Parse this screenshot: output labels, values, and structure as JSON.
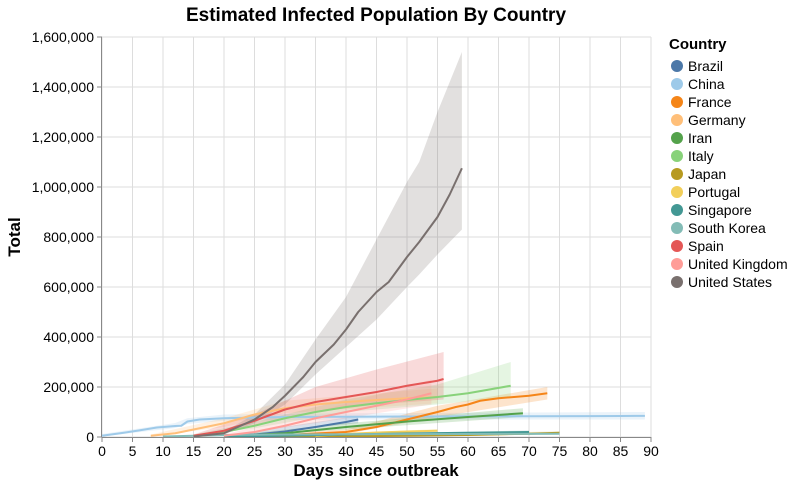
{
  "chart_data": {
    "type": "line",
    "title": "Estimated Infected Population By Country",
    "xlabel": "Days since outbreak",
    "ylabel": "Total",
    "xlim": [
      0,
      90
    ],
    "ylim": [
      0,
      1600000
    ],
    "x_ticks": [
      0,
      5,
      10,
      15,
      20,
      25,
      30,
      35,
      40,
      45,
      50,
      55,
      60,
      65,
      70,
      75,
      80,
      85,
      90
    ],
    "x_tick_labels": [
      "0",
      "5",
      "10",
      "15",
      "20",
      "25",
      "30",
      "35",
      "40",
      "45",
      "50",
      "55",
      "60",
      "65",
      "70",
      "75",
      "80",
      "85",
      "90"
    ],
    "y_ticks": [
      0,
      200000,
      400000,
      600000,
      800000,
      1000000,
      1200000,
      1400000,
      1600000
    ],
    "y_tick_labels": [
      "0",
      "200,000",
      "400,000",
      "600,000",
      "800,000",
      "1,000,000",
      "1,200,000",
      "1,400,000",
      "1,600,000"
    ],
    "grid": true,
    "legend": {
      "title": "Country",
      "position": "right"
    },
    "series": [
      {
        "name": "Brazil",
        "color": "#4c78a8",
        "points": [
          [
            20,
            3000
          ],
          [
            25,
            10000
          ],
          [
            30,
            22000
          ],
          [
            35,
            40000
          ],
          [
            40,
            60000
          ],
          [
            42,
            70000
          ]
        ],
        "band": [
          [
            20,
            2000,
            5000
          ],
          [
            42,
            55000,
            85000
          ]
        ]
      },
      {
        "name": "China",
        "color": "#9ecae9",
        "points": [
          [
            0,
            5000
          ],
          [
            3,
            15000
          ],
          [
            6,
            26000
          ],
          [
            9,
            38000
          ],
          [
            12,
            44000
          ],
          [
            13,
            45000
          ],
          [
            14,
            62000
          ],
          [
            16,
            70000
          ],
          [
            20,
            75000
          ],
          [
            25,
            78000
          ],
          [
            30,
            80000
          ],
          [
            40,
            81000
          ],
          [
            50,
            82000
          ],
          [
            60,
            82500
          ],
          [
            70,
            83000
          ],
          [
            80,
            83500
          ],
          [
            85,
            84000
          ],
          [
            89,
            84500
          ]
        ],
        "band": [
          [
            0,
            2000,
            12000
          ],
          [
            12,
            36000,
            56000
          ],
          [
            14,
            52000,
            75000
          ],
          [
            20,
            65000,
            90000
          ],
          [
            40,
            70000,
            95000
          ],
          [
            89,
            70000,
            100000
          ]
        ]
      },
      {
        "name": "France",
        "color": "#f58518",
        "points": [
          [
            20,
            2000
          ],
          [
            30,
            8000
          ],
          [
            40,
            20000
          ],
          [
            45,
            40000
          ],
          [
            50,
            70000
          ],
          [
            55,
            100000
          ],
          [
            58,
            120000
          ],
          [
            60,
            130000
          ],
          [
            62,
            145000
          ],
          [
            65,
            155000
          ],
          [
            70,
            165000
          ],
          [
            73,
            175000
          ]
        ],
        "band": [
          [
            20,
            1000,
            4000
          ],
          [
            40,
            12000,
            30000
          ],
          [
            55,
            80000,
            125000
          ],
          [
            73,
            150000,
            200000
          ]
        ]
      },
      {
        "name": "Germany",
        "color": "#ffbf79",
        "points": [
          [
            8,
            5000
          ],
          [
            12,
            15000
          ],
          [
            15,
            30000
          ],
          [
            20,
            55000
          ],
          [
            25,
            90000
          ],
          [
            30,
            115000
          ],
          [
            35,
            130000
          ],
          [
            40,
            140000
          ],
          [
            45,
            148000
          ],
          [
            50,
            155000
          ],
          [
            55,
            160000
          ]
        ],
        "band": [
          [
            8,
            2000,
            10000
          ],
          [
            20,
            40000,
            75000
          ],
          [
            30,
            95000,
            145000
          ],
          [
            55,
            135000,
            195000
          ]
        ]
      },
      {
        "name": "Iran",
        "color": "#54a24b",
        "points": [
          [
            20,
            2000
          ],
          [
            30,
            15000
          ],
          [
            40,
            40000
          ],
          [
            50,
            62000
          ],
          [
            60,
            80000
          ],
          [
            69,
            95000
          ]
        ],
        "band": [
          [
            20,
            1000,
            4000
          ],
          [
            40,
            30000,
            55000
          ],
          [
            69,
            80000,
            115000
          ]
        ]
      },
      {
        "name": "Italy",
        "color": "#88d27a",
        "points": [
          [
            15,
            5000
          ],
          [
            20,
            20000
          ],
          [
            25,
            45000
          ],
          [
            30,
            75000
          ],
          [
            35,
            100000
          ],
          [
            40,
            120000
          ],
          [
            45,
            135000
          ],
          [
            50,
            148000
          ],
          [
            55,
            160000
          ],
          [
            60,
            175000
          ],
          [
            67,
            205000
          ]
        ],
        "band": [
          [
            15,
            3000,
            10000
          ],
          [
            25,
            35000,
            60000
          ],
          [
            40,
            100000,
            150000
          ],
          [
            55,
            130000,
            210000
          ],
          [
            67,
            160000,
            300000
          ]
        ]
      },
      {
        "name": "Japan",
        "color": "#b79a20",
        "points": [
          [
            20,
            500
          ],
          [
            30,
            1500
          ],
          [
            40,
            3000
          ],
          [
            50,
            5000
          ],
          [
            60,
            8000
          ],
          [
            70,
            13000
          ],
          [
            75,
            17000
          ]
        ],
        "band": [
          [
            20,
            200,
            1000
          ],
          [
            75,
            13000,
            22000
          ]
        ]
      },
      {
        "name": "Portugal",
        "color": "#f2cf5b",
        "points": [
          [
            35,
            5000
          ],
          [
            40,
            12000
          ],
          [
            45,
            18000
          ],
          [
            50,
            22000
          ],
          [
            55,
            25000
          ]
        ],
        "band": [
          [
            35,
            3000,
            8000
          ],
          [
            55,
            20000,
            32000
          ]
        ]
      },
      {
        "name": "Singapore",
        "color": "#439894",
        "points": [
          [
            20,
            1000
          ],
          [
            30,
            5000
          ],
          [
            40,
            10000
          ],
          [
            50,
            14000
          ],
          [
            60,
            17000
          ],
          [
            70,
            20000
          ]
        ],
        "band": [
          [
            20,
            500,
            2000
          ],
          [
            70,
            15000,
            26000
          ]
        ]
      },
      {
        "name": "South Korea",
        "color": "#83bcb6",
        "points": [
          [
            10,
            2000
          ],
          [
            15,
            5000
          ],
          [
            20,
            8000
          ],
          [
            25,
            9000
          ],
          [
            30,
            10000
          ],
          [
            40,
            11000
          ],
          [
            50,
            11500
          ],
          [
            60,
            12000
          ],
          [
            70,
            12500
          ],
          [
            75,
            13000
          ]
        ],
        "band": [
          [
            10,
            1000,
            4000
          ],
          [
            75,
            10000,
            16000
          ]
        ]
      },
      {
        "name": "Spain",
        "color": "#e45756",
        "points": [
          [
            15,
            5000
          ],
          [
            20,
            25000
          ],
          [
            25,
            65000
          ],
          [
            30,
            110000
          ],
          [
            35,
            140000
          ],
          [
            40,
            160000
          ],
          [
            45,
            180000
          ],
          [
            50,
            205000
          ],
          [
            55,
            225000
          ],
          [
            56,
            232000
          ]
        ],
        "band": [
          [
            15,
            3000,
            10000
          ],
          [
            25,
            45000,
            90000
          ],
          [
            35,
            100000,
            200000
          ],
          [
            45,
            130000,
            270000
          ],
          [
            56,
            150000,
            340000
          ]
        ]
      },
      {
        "name": "United Kingdom",
        "color": "#ff9d98",
        "points": [
          [
            20,
            5000
          ],
          [
            25,
            20000
          ],
          [
            30,
            45000
          ],
          [
            35,
            75000
          ],
          [
            40,
            100000
          ],
          [
            45,
            125000
          ],
          [
            50,
            150000
          ],
          [
            54,
            175000
          ]
        ],
        "band": [
          [
            20,
            3000,
            10000
          ],
          [
            35,
            55000,
            100000
          ],
          [
            54,
            130000,
            230000
          ]
        ]
      },
      {
        "name": "United States",
        "color": "#79706e",
        "points": [
          [
            15,
            2000
          ],
          [
            20,
            15000
          ],
          [
            25,
            70000
          ],
          [
            28,
            120000
          ],
          [
            30,
            165000
          ],
          [
            33,
            240000
          ],
          [
            35,
            300000
          ],
          [
            38,
            370000
          ],
          [
            40,
            430000
          ],
          [
            42,
            500000
          ],
          [
            45,
            580000
          ],
          [
            47,
            620000
          ],
          [
            50,
            720000
          ],
          [
            52,
            780000
          ],
          [
            55,
            880000
          ],
          [
            57,
            970000
          ],
          [
            59,
            1075000
          ]
        ],
        "band": [
          [
            15,
            1000,
            4000
          ],
          [
            20,
            10000,
            22000
          ],
          [
            25,
            55000,
            90000
          ],
          [
            30,
            130000,
            210000
          ],
          [
            35,
            250000,
            390000
          ],
          [
            40,
            360000,
            560000
          ],
          [
            45,
            470000,
            790000
          ],
          [
            50,
            600000,
            1020000
          ],
          [
            52,
            650000,
            1100000
          ],
          [
            55,
            730000,
            1300000
          ],
          [
            59,
            830000,
            1540000
          ]
        ]
      }
    ]
  }
}
